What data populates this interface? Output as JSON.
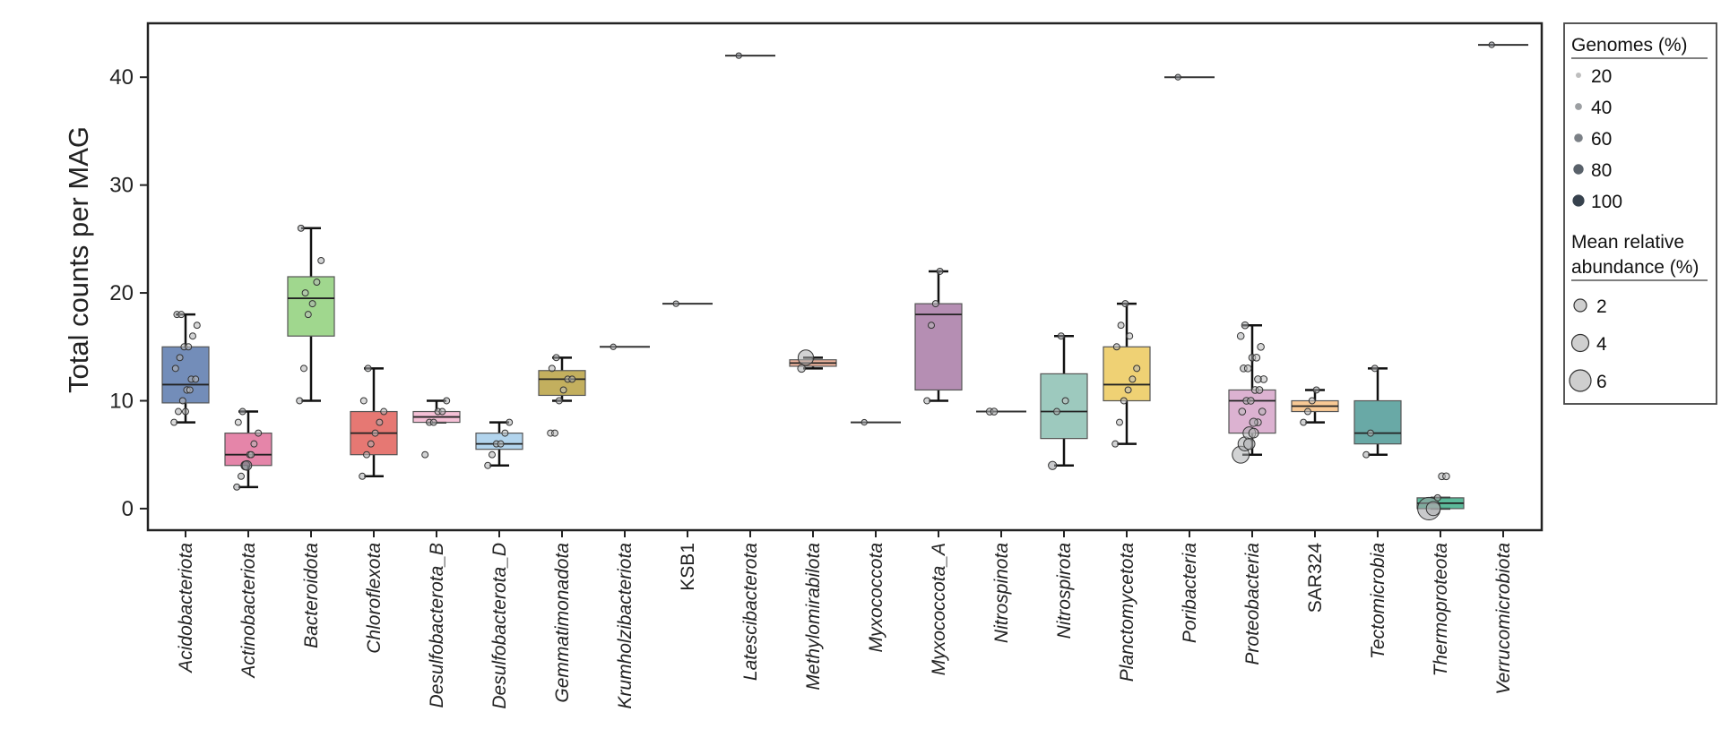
{
  "chart_data": {
    "type": "box",
    "title": "",
    "xlabel": "",
    "ylabel": "Total counts per MAG",
    "ylim": [
      -2,
      45
    ],
    "yticks": [
      0,
      10,
      20,
      30,
      40
    ],
    "grid": false,
    "legend_position": "right",
    "categories": [
      "Acidobacteriota",
      "Actinobacteriota",
      "Bacteroidota",
      "Chloroflexota",
      "Desulfobacterota_B",
      "Desulfobacterota_D",
      "Gemmatimonadota",
      "Krumholzibacteriota",
      "KSB1",
      "Latescibacterota",
      "Methylomirabilota",
      "Myxococcota",
      "Myxococcota_A",
      "Nitrospinota",
      "Nitrospirota",
      "Planctomycetota",
      "Poribacteria",
      "Proteobacteria",
      "SAR324",
      "Tectomicrobia",
      "Thermoproteota",
      "Verrucomicrobiota"
    ],
    "italic": [
      true,
      true,
      true,
      true,
      true,
      true,
      true,
      true,
      false,
      true,
      true,
      true,
      true,
      true,
      true,
      true,
      true,
      true,
      false,
      true,
      true,
      true
    ],
    "colors": [
      "#5b79ad",
      "#e0709a",
      "#8fd07a",
      "#e2605a",
      "#f3b5cf",
      "#a5cdea",
      "#b8a142",
      "#c6a9c6",
      "#999999",
      "#999999",
      "#efa98e",
      "#999999",
      "#a87aa6",
      "#999999",
      "#8cc0b3",
      "#ecc95c",
      "#999999",
      "#d6a5c9",
      "#f7bf82",
      "#4f9a96",
      "#3fae88",
      "#999999"
    ],
    "boxes": [
      {
        "q1": 9.8,
        "median": 11.5,
        "q3": 15,
        "lo": 8,
        "hi": 18
      },
      {
        "q1": 4,
        "median": 5,
        "q3": 7,
        "lo": 2,
        "hi": 9
      },
      {
        "q1": 16,
        "median": 19.5,
        "q3": 21.5,
        "lo": 10,
        "hi": 26
      },
      {
        "q1": 5,
        "median": 7,
        "q3": 9,
        "lo": 3,
        "hi": 13
      },
      {
        "q1": 8,
        "median": 8.5,
        "q3": 9,
        "lo": 8,
        "hi": 10
      },
      {
        "q1": 5.5,
        "median": 6,
        "q3": 7,
        "lo": 4,
        "hi": 8
      },
      {
        "q1": 10.5,
        "median": 12,
        "q3": 12.8,
        "lo": 10,
        "hi": 14
      },
      {
        "q1": 15,
        "median": 15,
        "q3": 15,
        "lo": 15,
        "hi": 15
      },
      {
        "q1": 19,
        "median": 19,
        "q3": 19,
        "lo": 19,
        "hi": 19
      },
      {
        "q1": 42,
        "median": 42,
        "q3": 42,
        "lo": 42,
        "hi": 42
      },
      {
        "q1": 13.2,
        "median": 13.5,
        "q3": 13.8,
        "lo": 13,
        "hi": 14
      },
      {
        "q1": 8,
        "median": 8,
        "q3": 8,
        "lo": 8,
        "hi": 8
      },
      {
        "q1": 11,
        "median": 18,
        "q3": 19,
        "lo": 10,
        "hi": 22
      },
      {
        "q1": 9,
        "median": 9,
        "q3": 9,
        "lo": 9,
        "hi": 9
      },
      {
        "q1": 6.5,
        "median": 9,
        "q3": 12.5,
        "lo": 4,
        "hi": 16
      },
      {
        "q1": 10,
        "median": 11.5,
        "q3": 15,
        "lo": 6,
        "hi": 19
      },
      {
        "q1": 40,
        "median": 40,
        "q3": 40,
        "lo": 40,
        "hi": 40
      },
      {
        "q1": 7,
        "median": 10,
        "q3": 11,
        "lo": 5,
        "hi": 17
      },
      {
        "q1": 9,
        "median": 9.5,
        "q3": 10,
        "lo": 8,
        "hi": 11
      },
      {
        "q1": 6,
        "median": 7,
        "q3": 10,
        "lo": 5,
        "hi": 13
      },
      {
        "q1": 0,
        "median": 0.5,
        "q3": 1,
        "lo": 0,
        "hi": 1
      },
      {
        "q1": 43,
        "median": 43,
        "q3": 43,
        "lo": 43,
        "hi": 43
      }
    ],
    "points": [
      [
        [
          8,
          20
        ],
        [
          9,
          30
        ],
        [
          10,
          20
        ],
        [
          11,
          25
        ],
        [
          12,
          30
        ],
        [
          12,
          20
        ],
        [
          13,
          25
        ],
        [
          14,
          30
        ],
        [
          15,
          25
        ],
        [
          15,
          20
        ],
        [
          16,
          30
        ],
        [
          17,
          25
        ],
        [
          18,
          30
        ],
        [
          18,
          20
        ],
        [
          9,
          25
        ],
        [
          11,
          20
        ]
      ],
      [
        [
          2,
          40
        ],
        [
          3,
          30
        ],
        [
          4,
          50
        ],
        [
          5,
          30
        ],
        [
          6,
          25
        ],
        [
          7,
          30
        ],
        [
          8,
          20
        ],
        [
          9,
          40
        ],
        [
          4,
          60
        ],
        [
          5,
          20
        ]
      ],
      [
        [
          10,
          30
        ],
        [
          13,
          25
        ],
        [
          18,
          20
        ],
        [
          19,
          30
        ],
        [
          21,
          25
        ],
        [
          23,
          30
        ],
        [
          26,
          40
        ],
        [
          20,
          20
        ]
      ],
      [
        [
          3,
          30
        ],
        [
          5,
          25
        ],
        [
          6,
          30
        ],
        [
          7,
          20
        ],
        [
          8,
          30
        ],
        [
          9,
          25
        ],
        [
          10,
          20
        ],
        [
          13,
          30
        ]
      ],
      [
        [
          5,
          30
        ],
        [
          8,
          25
        ],
        [
          8,
          30
        ],
        [
          9,
          20
        ],
        [
          9,
          30
        ],
        [
          10,
          30
        ]
      ],
      [
        [
          4,
          30
        ],
        [
          5,
          25
        ],
        [
          6,
          30
        ],
        [
          6,
          20
        ],
        [
          7,
          20
        ],
        [
          8,
          30
        ]
      ],
      [
        [
          7,
          20
        ],
        [
          7,
          25
        ],
        [
          10,
          30
        ],
        [
          11,
          20
        ],
        [
          12,
          25
        ],
        [
          12,
          30
        ],
        [
          13,
          25
        ],
        [
          14,
          30
        ]
      ],
      [
        [
          15,
          40
        ]
      ],
      [
        [
          19,
          40
        ]
      ],
      [
        [
          42,
          60
        ]
      ],
      [
        [
          13,
          30
        ],
        [
          14,
          30
        ]
      ],
      [
        [
          8,
          40
        ]
      ],
      [
        [
          10,
          30
        ],
        [
          17,
          25
        ],
        [
          19,
          30
        ],
        [
          22,
          40
        ]
      ],
      [
        [
          9,
          30
        ],
        [
          9,
          35
        ]
      ],
      [
        [
          4,
          40
        ],
        [
          9,
          25
        ],
        [
          16,
          40
        ],
        [
          10,
          20
        ]
      ],
      [
        [
          6,
          30
        ],
        [
          8,
          25
        ],
        [
          10,
          25
        ],
        [
          11,
          20
        ],
        [
          12,
          20
        ],
        [
          13,
          25
        ],
        [
          15,
          30
        ],
        [
          17,
          25
        ],
        [
          19,
          35
        ],
        [
          16,
          20
        ]
      ],
      [
        [
          40,
          60
        ]
      ],
      [
        [
          5,
          30
        ],
        [
          6,
          35
        ],
        [
          7,
          30
        ],
        [
          7,
          25
        ],
        [
          8,
          20
        ],
        [
          9,
          25
        ],
        [
          9,
          20
        ],
        [
          10,
          30
        ],
        [
          10,
          25
        ],
        [
          11,
          20
        ],
        [
          11,
          25
        ],
        [
          12,
          20
        ],
        [
          13,
          30
        ],
        [
          13,
          25
        ],
        [
          14,
          30
        ],
        [
          14,
          20
        ],
        [
          15,
          25
        ],
        [
          16,
          30
        ],
        [
          17,
          35
        ],
        [
          6,
          30
        ],
        [
          8,
          30
        ],
        [
          12,
          30
        ]
      ],
      [
        [
          8,
          30
        ],
        [
          9,
          25
        ],
        [
          10,
          20
        ],
        [
          11,
          30
        ]
      ],
      [
        [
          5,
          30
        ],
        [
          7,
          25
        ],
        [
          13,
          35
        ]
      ],
      [
        [
          0,
          40
        ],
        [
          0,
          30
        ],
        [
          1,
          30
        ],
        [
          3,
          30
        ],
        [
          3,
          25
        ]
      ],
      [
        [
          43,
          60
        ]
      ]
    ],
    "point_sizes_rel_abundance": [
      [
        0.3,
        0.3,
        0.3,
        0.4,
        0.3,
        0.3,
        0.3,
        0.3,
        0.3,
        0.3,
        0.3,
        0.3,
        0.3,
        0.3,
        0.3,
        0.3
      ],
      [
        0.3,
        0.3,
        1.2,
        0.3,
        0.3,
        0.3,
        0.3,
        0.3,
        1.5,
        0.3
      ],
      [
        0.3,
        0.3,
        0.3,
        0.3,
        0.3,
        0.3,
        0.3,
        0.3
      ],
      [
        0.3,
        0.3,
        0.3,
        0.3,
        0.3,
        0.3,
        0.3,
        0.3
      ],
      [
        0.3,
        0.3,
        0.3,
        0.3,
        0.3,
        0.3
      ],
      [
        0.3,
        0.3,
        0.3,
        0.3,
        0.3,
        0.3
      ],
      [
        0.3,
        0.3,
        0.3,
        0.3,
        0.3,
        0.3,
        0.3,
        0.3
      ],
      [
        0.1
      ],
      [
        0.1
      ],
      [
        0.1
      ],
      [
        0.8,
        3.5
      ],
      [
        0.1
      ],
      [
        0.3,
        0.3,
        0.3,
        0.3
      ],
      [
        0.5,
        0.5
      ],
      [
        1.0,
        0.3,
        0.3,
        0.3
      ],
      [
        0.3,
        0.3,
        0.3,
        0.3,
        0.3,
        0.3,
        0.3,
        0.3,
        0.3,
        0.3
      ],
      [
        0.1
      ],
      [
        4.0,
        3.0,
        2.5,
        1.5,
        0.5,
        0.5,
        0.5,
        0.5,
        0.5,
        0.5,
        0.5,
        0.5,
        0.5,
        0.5,
        0.5,
        0.5,
        0.5,
        0.5,
        0.5,
        2.0,
        1.0,
        0.5
      ],
      [
        0.3,
        0.3,
        0.3,
        0.3
      ],
      [
        0.3,
        0.3,
        0.3
      ],
      [
        6.0,
        3.0,
        0.3,
        0.5,
        0.5
      ],
      [
        0.1
      ]
    ],
    "legend": {
      "genomes_title": "Genomes (%)",
      "genomes_items": [
        {
          "label": "20",
          "value": 20
        },
        {
          "label": "40",
          "value": 40
        },
        {
          "label": "60",
          "value": 60
        },
        {
          "label": "80",
          "value": 80
        },
        {
          "label": "100",
          "value": 100
        }
      ],
      "abundance_title_line1": "Mean relative",
      "abundance_title_line2": "abundance (%)",
      "abundance_items": [
        {
          "label": "2",
          "value": 2
        },
        {
          "label": "4",
          "value": 4
        },
        {
          "label": "6",
          "value": 6
        }
      ]
    }
  }
}
